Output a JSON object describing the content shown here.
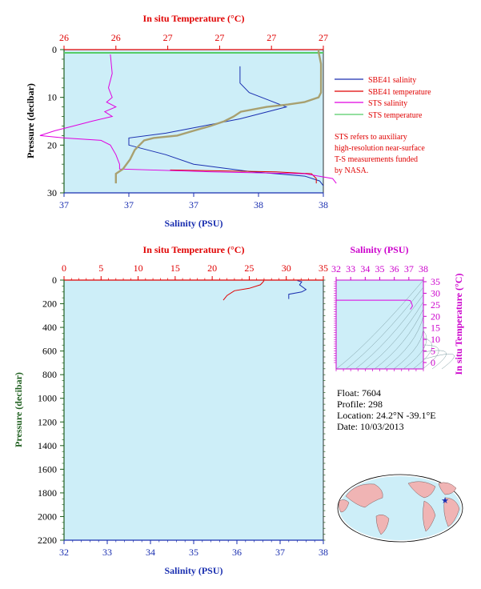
{
  "colors": {
    "plot_bg": "#cdeef8",
    "salinity": "#1a2fb0",
    "temperature": "#e00000",
    "sts_salinity": "#e000e0",
    "sts_temperature": "#55cc66",
    "sts_temperature_overlap": "#a8a070",
    "pressure_axis": "#206020",
    "ts_axis": "#cc00cc"
  },
  "upper_panel": {
    "top_axis_label": "In situ Temperature (°C)",
    "top_ticks": [
      "26",
      "26",
      "27",
      "27",
      "27",
      "27"
    ],
    "bottom_axis_label": "Salinity (PSU)",
    "bottom_ticks": [
      "37",
      "37",
      "37",
      "38",
      "38"
    ],
    "y_axis_label": "Pressure (decibar)",
    "y_ticks": [
      "0",
      "10",
      "20",
      "30"
    ],
    "legend": [
      {
        "label": "SBE41 salinity",
        "color": "#1a2fb0"
      },
      {
        "label": "SBE41 temperature",
        "color": "#e00000"
      },
      {
        "label": "STS salinity",
        "color": "#e000e0"
      },
      {
        "label": "STS temperature",
        "color": "#55cc66"
      }
    ],
    "note": [
      "STS refers to auxiliary",
      "high-resolution near-surface",
      "T-S measurements funded",
      "by NASA."
    ]
  },
  "lower_panel": {
    "top_axis_label": "In situ Temperature (°C)",
    "top_ticks": [
      "0",
      "5",
      "10",
      "15",
      "20",
      "25",
      "30",
      "35"
    ],
    "bottom_axis_label": "Salinity (PSU)",
    "bottom_ticks": [
      "32",
      "33",
      "34",
      "35",
      "36",
      "37",
      "38"
    ],
    "y_axis_label": "Pressure (decibar)",
    "y_ticks": [
      "0",
      "200",
      "400",
      "600",
      "800",
      "1000",
      "1200",
      "1400",
      "1600",
      "1800",
      "2000",
      "2200"
    ]
  },
  "ts_panel": {
    "top_axis_label": "Salinity (PSU)",
    "top_ticks": [
      "32",
      "33",
      "34",
      "35",
      "36",
      "37",
      "38"
    ],
    "right_axis_label": "In situ Temperature (°C)",
    "right_ticks": [
      "0",
      "5",
      "10",
      "15",
      "20",
      "25",
      "30",
      "35"
    ]
  },
  "info": {
    "float": "Float:  7604",
    "profile": "Profile:  298",
    "location": "Location:  24.2°N  -39.1°E",
    "date": "Date:  10/03/2013"
  },
  "chart_data": [
    {
      "type": "line",
      "panel": "upper",
      "x_salinity_range": [
        36.6,
        38.0
      ],
      "x_temperature_range": [
        25.9,
        27.0
      ],
      "ylim": [
        30,
        0
      ],
      "series": [
        {
          "name": "SBE41 salinity",
          "axis": "salinity",
          "points": [
            [
              37.55,
              3.5
            ],
            [
              37.55,
              7
            ],
            [
              37.6,
              9
            ],
            [
              37.7,
              10.5
            ],
            [
              37.8,
              12
            ],
            [
              37.55,
              14.5
            ],
            [
              37.35,
              16
            ],
            [
              37.15,
              17.5
            ],
            [
              36.95,
              18.5
            ],
            [
              36.95,
              20
            ],
            [
              37.15,
              22
            ],
            [
              37.3,
              24
            ],
            [
              37.6,
              25.5
            ],
            [
              37.9,
              26.5
            ],
            [
              37.98,
              27.5
            ],
            [
              38.0,
              28.5
            ]
          ]
        },
        {
          "name": "SBE41 temperature",
          "axis": "temperature",
          "points": [
            [
              26.35,
              25.2
            ],
            [
              26.8,
              25.6
            ],
            [
              26.95,
              26
            ],
            [
              26.97,
              27
            ],
            [
              26.97,
              28
            ]
          ]
        },
        {
          "name": "STS salinity",
          "axis": "salinity",
          "points": [
            [
              36.85,
              1
            ],
            [
              36.86,
              5
            ],
            [
              36.84,
              8
            ],
            [
              36.86,
              10
            ],
            [
              36.83,
              11
            ],
            [
              36.88,
              12
            ],
            [
              36.82,
              13
            ],
            [
              36.86,
              14
            ],
            [
              36.75,
              15
            ],
            [
              36.65,
              16
            ],
            [
              36.55,
              17
            ],
            [
              36.47,
              18
            ],
            [
              36.6,
              18.5
            ],
            [
              36.8,
              19
            ],
            [
              36.85,
              20
            ],
            [
              36.88,
              22
            ],
            [
              36.9,
              24
            ],
            [
              36.9,
              25
            ],
            [
              37.4,
              25.6
            ],
            [
              37.9,
              26
            ],
            [
              38.05,
              27
            ],
            [
              38.07,
              28
            ]
          ]
        },
        {
          "name": "STS temperature",
          "axis": "temperature",
          "points": [
            [
              26.98,
              0
            ],
            [
              26.98,
              0.5
            ],
            [
              26.99,
              3
            ],
            [
              26.99,
              6
            ],
            [
              26.99,
              9
            ],
            [
              26.98,
              10
            ],
            [
              26.92,
              11
            ],
            [
              26.85,
              11.5
            ],
            [
              26.76,
              12
            ],
            [
              26.65,
              13
            ],
            [
              26.62,
              14
            ],
            [
              26.58,
              15
            ],
            [
              26.52,
              16
            ],
            [
              26.45,
              17
            ],
            [
              26.38,
              18
            ],
            [
              26.28,
              18.5
            ],
            [
              26.24,
              19
            ],
            [
              26.2,
              21
            ],
            [
              26.18,
              23
            ],
            [
              26.15,
              25
            ],
            [
              26.12,
              26
            ],
            [
              26.12,
              27
            ],
            [
              26.12,
              28
            ]
          ]
        }
      ]
    },
    {
      "type": "line",
      "panel": "lower",
      "xlim_salinity": [
        32,
        38
      ],
      "xlim_temperature": [
        0,
        35
      ],
      "ylim": [
        2200,
        0
      ],
      "series": [
        {
          "name": "SBE41 salinity",
          "axis": "salinity",
          "points": [
            [
              37.4,
              5
            ],
            [
              37.5,
              15
            ],
            [
              37.45,
              40
            ],
            [
              37.6,
              80
            ],
            [
              37.5,
              100
            ],
            [
              37.2,
              120
            ],
            [
              37.2,
              160
            ]
          ]
        },
        {
          "name": "SBE41 temperature",
          "axis": "temperature",
          "points": [
            [
              27.0,
              5
            ],
            [
              26.8,
              20
            ],
            [
              26.5,
              40
            ],
            [
              25.0,
              70
            ],
            [
              23.0,
              90
            ],
            [
              22.0,
              130
            ],
            [
              21.5,
              170
            ]
          ]
        }
      ]
    },
    {
      "type": "line",
      "panel": "ts",
      "xlim": [
        32,
        38
      ],
      "ylim": [
        0,
        35
      ],
      "series": [
        {
          "axis": "ts",
          "points": [
            [
              32.0,
              27
            ],
            [
              36.95,
              27
            ],
            [
              37.1,
              26.8
            ],
            [
              37.2,
              25.5
            ],
            [
              37.25,
              24.5
            ],
            [
              37.1,
              23
            ]
          ]
        }
      ]
    }
  ]
}
